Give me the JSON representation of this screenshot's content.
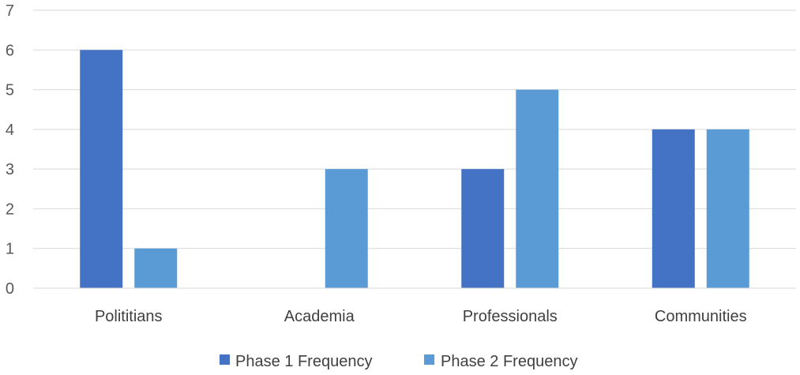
{
  "chart_data": {
    "type": "bar",
    "categories": [
      "Polititians",
      "Academia",
      "Professionals",
      "Communities"
    ],
    "series": [
      {
        "name": "Phase 1 Frequency",
        "values": [
          6,
          0,
          3,
          4
        ],
        "color": "#4472C4"
      },
      {
        "name": "Phase 2 Frequency",
        "values": [
          1,
          3,
          5,
          4
        ],
        "color": "#5B9BD5"
      }
    ],
    "title": "",
    "xlabel": "",
    "ylabel": "",
    "ylim": [
      0,
      7
    ],
    "yticks": [
      "0",
      "1",
      "2",
      "3",
      "4",
      "5",
      "6",
      "7"
    ],
    "grid": true,
    "gridColor": "#D9D9D9",
    "legend": "bottom"
  }
}
